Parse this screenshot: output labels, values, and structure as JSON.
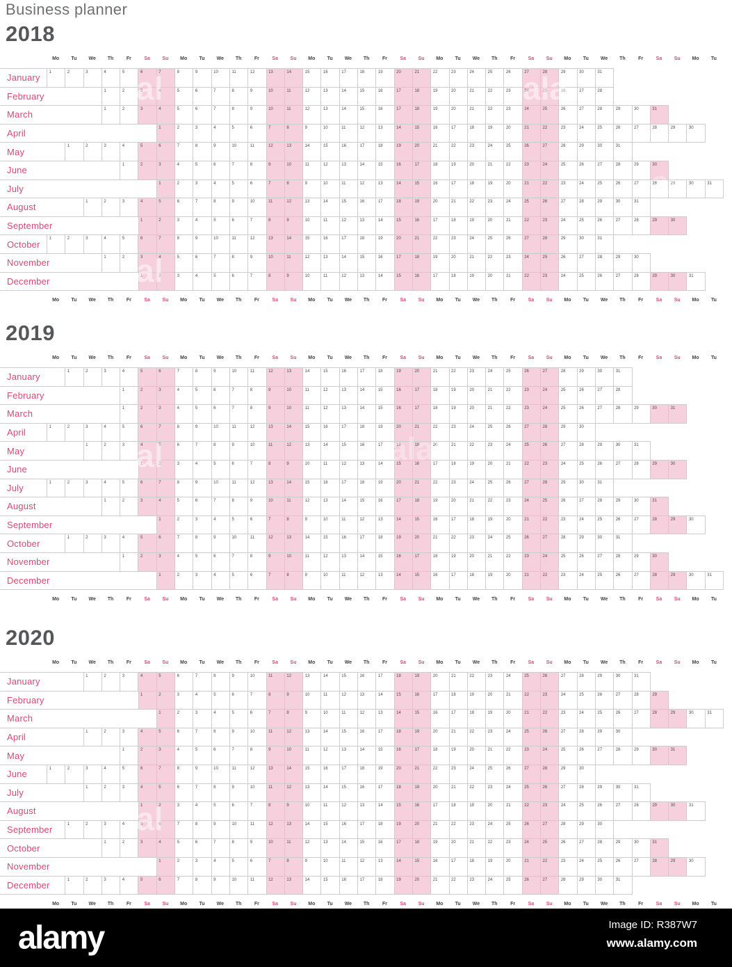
{
  "title": "Business planner",
  "weekdays": [
    "Mo",
    "Tu",
    "We",
    "Th",
    "Fr",
    "Sa",
    "Su"
  ],
  "columns": 37,
  "years": [
    {
      "label": "2018",
      "months": [
        {
          "name": "January",
          "start": 0,
          "days": 31
        },
        {
          "name": "February",
          "start": 3,
          "days": 28
        },
        {
          "name": "March",
          "start": 3,
          "days": 31
        },
        {
          "name": "April",
          "start": 6,
          "days": 30,
          "plain_weekend_days": [
            28,
            29
          ]
        },
        {
          "name": "May",
          "start": 1,
          "days": 31
        },
        {
          "name": "June",
          "start": 4,
          "days": 30
        },
        {
          "name": "July",
          "start": 6,
          "days": 31,
          "plain_weekend_days": [
            28,
            29
          ]
        },
        {
          "name": "August",
          "start": 2,
          "days": 31
        },
        {
          "name": "September",
          "start": 5,
          "days": 30
        },
        {
          "name": "October",
          "start": 0,
          "days": 31
        },
        {
          "name": "November",
          "start": 3,
          "days": 30
        },
        {
          "name": "December",
          "start": 5,
          "days": 31
        }
      ]
    },
    {
      "label": "2019",
      "months": [
        {
          "name": "January",
          "start": 1,
          "days": 31
        },
        {
          "name": "February",
          "start": 4,
          "days": 28
        },
        {
          "name": "March",
          "start": 4,
          "days": 31
        },
        {
          "name": "April",
          "start": 0,
          "days": 30
        },
        {
          "name": "May",
          "start": 2,
          "days": 31
        },
        {
          "name": "June",
          "start": 5,
          "days": 30
        },
        {
          "name": "July",
          "start": 0,
          "days": 31
        },
        {
          "name": "August",
          "start": 3,
          "days": 31
        },
        {
          "name": "September",
          "start": 6,
          "days": 30
        },
        {
          "name": "October",
          "start": 1,
          "days": 31
        },
        {
          "name": "November",
          "start": 4,
          "days": 30
        },
        {
          "name": "December",
          "start": 6,
          "days": 31
        }
      ]
    },
    {
      "label": "2020",
      "months": [
        {
          "name": "January",
          "start": 2,
          "days": 31
        },
        {
          "name": "February",
          "start": 5,
          "days": 29
        },
        {
          "name": "March",
          "start": 6,
          "days": 31
        },
        {
          "name": "April",
          "start": 2,
          "days": 30
        },
        {
          "name": "May",
          "start": 4,
          "days": 31
        },
        {
          "name": "June",
          "start": 0,
          "days": 30
        },
        {
          "name": "July",
          "start": 2,
          "days": 31
        },
        {
          "name": "August",
          "start": 5,
          "days": 31
        },
        {
          "name": "September",
          "start": 1,
          "days": 30
        },
        {
          "name": "October",
          "start": 3,
          "days": 31
        },
        {
          "name": "November",
          "start": 6,
          "days": 30
        },
        {
          "name": "December",
          "start": 1,
          "days": 31
        }
      ]
    }
  ],
  "watermark_text": "alamy",
  "footer": {
    "logo": "alamy",
    "image_id": "Image ID: R387W7",
    "url": "www.alamy.com"
  },
  "colors": {
    "accent": "#d84972",
    "weekend_fill": "#f7d0dd",
    "grid_line": "#cccccc",
    "day_text": "#4b4b4d",
    "weekday_text": "#3f3f41",
    "title_text": "#6f7073",
    "year_text": "#56575a",
    "footer_bg": "#000000"
  }
}
